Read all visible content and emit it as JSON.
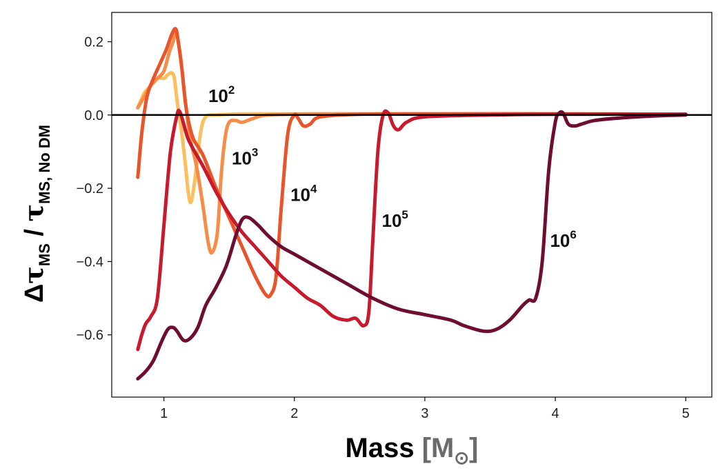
{
  "chart_data": {
    "type": "line",
    "xlabel": {
      "main": "Mass ",
      "unit_open": "[M",
      "unit_sub": "⊙",
      "unit_close": "]"
    },
    "ylabel": {
      "delta": "Δ",
      "tau": "τ",
      "sub1": "MS",
      "sep": " / ",
      "sub2": "MS, No DM"
    },
    "xlim": [
      0.6,
      5.2
    ],
    "ylim": [
      -0.77,
      0.28
    ],
    "xticks": [
      {
        "value": 1,
        "label": "1"
      },
      {
        "value": 2,
        "label": "2"
      },
      {
        "value": 3,
        "label": "3"
      },
      {
        "value": 4,
        "label": "4"
      },
      {
        "value": 5,
        "label": "5"
      }
    ],
    "yticks": [
      {
        "value": 0.2,
        "label": "0.2"
      },
      {
        "value": 0.0,
        "label": "0.0"
      },
      {
        "value": -0.2,
        "label": "−0.2"
      },
      {
        "value": -0.4,
        "label": "−0.4"
      },
      {
        "value": -0.6,
        "label": "−0.6"
      }
    ],
    "reference_line": {
      "y": 0.0,
      "color": "#000000"
    },
    "grid": false,
    "series": [
      {
        "base": "10",
        "exp": "2",
        "color": "#fdbe5e",
        "label_at": {
          "x": 1.34,
          "y": 0.035
        },
        "points": [
          [
            0.8,
            0.02
          ],
          [
            0.85,
            0.06
          ],
          [
            0.9,
            0.08
          ],
          [
            0.95,
            0.1
          ],
          [
            1.0,
            0.1
          ],
          [
            1.03,
            0.11
          ],
          [
            1.06,
            0.115
          ],
          [
            1.08,
            0.1
          ],
          [
            1.1,
            0.04
          ],
          [
            1.13,
            -0.03
          ],
          [
            1.16,
            -0.12
          ],
          [
            1.19,
            -0.22
          ],
          [
            1.21,
            -0.235
          ],
          [
            1.24,
            -0.17
          ],
          [
            1.28,
            -0.05
          ],
          [
            1.32,
            -0.005
          ],
          [
            1.4,
            0.0
          ],
          [
            1.6,
            0.003
          ],
          [
            2.0,
            0.003
          ],
          [
            3.0,
            0.003
          ],
          [
            4.0,
            0.003
          ],
          [
            5.0,
            0.002
          ]
        ]
      },
      {
        "base": "10",
        "exp": "3",
        "color": "#f58d48",
        "label_at": {
          "x": 1.52,
          "y": -0.135
        },
        "points": [
          [
            0.8,
            0.02
          ],
          [
            0.85,
            0.05
          ],
          [
            0.9,
            0.08
          ],
          [
            0.95,
            0.1
          ],
          [
            1.0,
            0.12
          ],
          [
            1.04,
            0.17
          ],
          [
            1.07,
            0.2
          ],
          [
            1.09,
            0.23
          ],
          [
            1.1,
            0.22
          ],
          [
            1.13,
            0.15
          ],
          [
            1.16,
            0.05
          ],
          [
            1.2,
            -0.06
          ],
          [
            1.25,
            -0.14
          ],
          [
            1.3,
            -0.25
          ],
          [
            1.34,
            -0.35
          ],
          [
            1.37,
            -0.375
          ],
          [
            1.41,
            -0.32
          ],
          [
            1.44,
            -0.16
          ],
          [
            1.47,
            -0.06
          ],
          [
            1.5,
            -0.02
          ],
          [
            1.55,
            -0.015
          ],
          [
            1.6,
            -0.02
          ],
          [
            1.68,
            -0.01
          ],
          [
            1.8,
            0.0
          ],
          [
            2.2,
            0.003
          ],
          [
            3.0,
            0.003
          ],
          [
            4.0,
            0.003
          ],
          [
            5.0,
            0.002
          ]
        ]
      },
      {
        "base": "10",
        "exp": "4",
        "color": "#e8552b",
        "label_at": {
          "x": 1.97,
          "y": -0.235
        },
        "points": [
          [
            0.8,
            -0.17
          ],
          [
            0.83,
            -0.05
          ],
          [
            0.87,
            0.05
          ],
          [
            0.92,
            0.1
          ],
          [
            0.97,
            0.14
          ],
          [
            1.02,
            0.18
          ],
          [
            1.06,
            0.22
          ],
          [
            1.09,
            0.235
          ],
          [
            1.11,
            0.2
          ],
          [
            1.14,
            0.12
          ],
          [
            1.17,
            0.02
          ],
          [
            1.22,
            -0.06
          ],
          [
            1.3,
            -0.11
          ],
          [
            1.4,
            -0.2
          ],
          [
            1.5,
            -0.28
          ],
          [
            1.6,
            -0.36
          ],
          [
            1.7,
            -0.44
          ],
          [
            1.78,
            -0.49
          ],
          [
            1.82,
            -0.49
          ],
          [
            1.86,
            -0.44
          ],
          [
            1.9,
            -0.25
          ],
          [
            1.95,
            -0.05
          ],
          [
            2.0,
            0.0
          ],
          [
            2.03,
            -0.01
          ],
          [
            2.07,
            -0.03
          ],
          [
            2.12,
            -0.025
          ],
          [
            2.2,
            -0.005
          ],
          [
            2.5,
            0.002
          ],
          [
            3.0,
            0.003
          ],
          [
            4.0,
            0.003
          ],
          [
            5.0,
            0.002
          ]
        ]
      },
      {
        "base": "10",
        "exp": "5",
        "color": "#c71a2c",
        "label_at": {
          "x": 2.67,
          "y": -0.305
        },
        "points": [
          [
            0.8,
            -0.64
          ],
          [
            0.83,
            -0.6
          ],
          [
            0.86,
            -0.57
          ],
          [
            0.9,
            -0.55
          ],
          [
            0.95,
            -0.5
          ],
          [
            1.0,
            -0.3
          ],
          [
            1.05,
            -0.1
          ],
          [
            1.1,
            0.0
          ],
          [
            1.12,
            0.01
          ],
          [
            1.14,
            -0.01
          ],
          [
            1.18,
            -0.06
          ],
          [
            1.22,
            -0.09
          ],
          [
            1.3,
            -0.14
          ],
          [
            1.4,
            -0.21
          ],
          [
            1.5,
            -0.27
          ],
          [
            1.6,
            -0.32
          ],
          [
            1.7,
            -0.36
          ],
          [
            1.8,
            -0.4
          ],
          [
            1.9,
            -0.44
          ],
          [
            2.0,
            -0.47
          ],
          [
            2.1,
            -0.5
          ],
          [
            2.2,
            -0.52
          ],
          [
            2.3,
            -0.55
          ],
          [
            2.4,
            -0.56
          ],
          [
            2.47,
            -0.555
          ],
          [
            2.53,
            -0.575
          ],
          [
            2.57,
            -0.54
          ],
          [
            2.6,
            -0.35
          ],
          [
            2.64,
            -0.1
          ],
          [
            2.68,
            0.0
          ],
          [
            2.72,
            0.005
          ],
          [
            2.76,
            -0.03
          ],
          [
            2.8,
            -0.04
          ],
          [
            2.86,
            -0.02
          ],
          [
            3.0,
            -0.005
          ],
          [
            3.5,
            0.0
          ],
          [
            4.0,
            0.002
          ],
          [
            5.0,
            0.002
          ]
        ]
      },
      {
        "base": "10",
        "exp": "6",
        "color": "#6e0d32",
        "label_at": {
          "x": 3.96,
          "y": -0.36
        },
        "points": [
          [
            0.8,
            -0.72
          ],
          [
            0.86,
            -0.7
          ],
          [
            0.92,
            -0.67
          ],
          [
            0.98,
            -0.62
          ],
          [
            1.03,
            -0.585
          ],
          [
            1.07,
            -0.58
          ],
          [
            1.1,
            -0.59
          ],
          [
            1.15,
            -0.615
          ],
          [
            1.2,
            -0.61
          ],
          [
            1.26,
            -0.58
          ],
          [
            1.32,
            -0.52
          ],
          [
            1.4,
            -0.47
          ],
          [
            1.48,
            -0.41
          ],
          [
            1.55,
            -0.33
          ],
          [
            1.6,
            -0.285
          ],
          [
            1.65,
            -0.28
          ],
          [
            1.72,
            -0.3
          ],
          [
            1.8,
            -0.33
          ],
          [
            1.9,
            -0.36
          ],
          [
            2.0,
            -0.38
          ],
          [
            2.2,
            -0.42
          ],
          [
            2.4,
            -0.46
          ],
          [
            2.6,
            -0.5
          ],
          [
            2.8,
            -0.53
          ],
          [
            3.0,
            -0.545
          ],
          [
            3.2,
            -0.56
          ],
          [
            3.3,
            -0.575
          ],
          [
            3.45,
            -0.59
          ],
          [
            3.55,
            -0.585
          ],
          [
            3.65,
            -0.56
          ],
          [
            3.75,
            -0.52
          ],
          [
            3.8,
            -0.505
          ],
          [
            3.85,
            -0.5
          ],
          [
            3.9,
            -0.4
          ],
          [
            3.95,
            -0.15
          ],
          [
            4.0,
            -0.02
          ],
          [
            4.03,
            0.005
          ],
          [
            4.06,
            0.005
          ],
          [
            4.1,
            -0.025
          ],
          [
            4.15,
            -0.03
          ],
          [
            4.2,
            -0.025
          ],
          [
            4.3,
            -0.015
          ],
          [
            4.5,
            -0.008
          ],
          [
            4.8,
            -0.002
          ],
          [
            5.0,
            0.0
          ]
        ]
      }
    ]
  }
}
